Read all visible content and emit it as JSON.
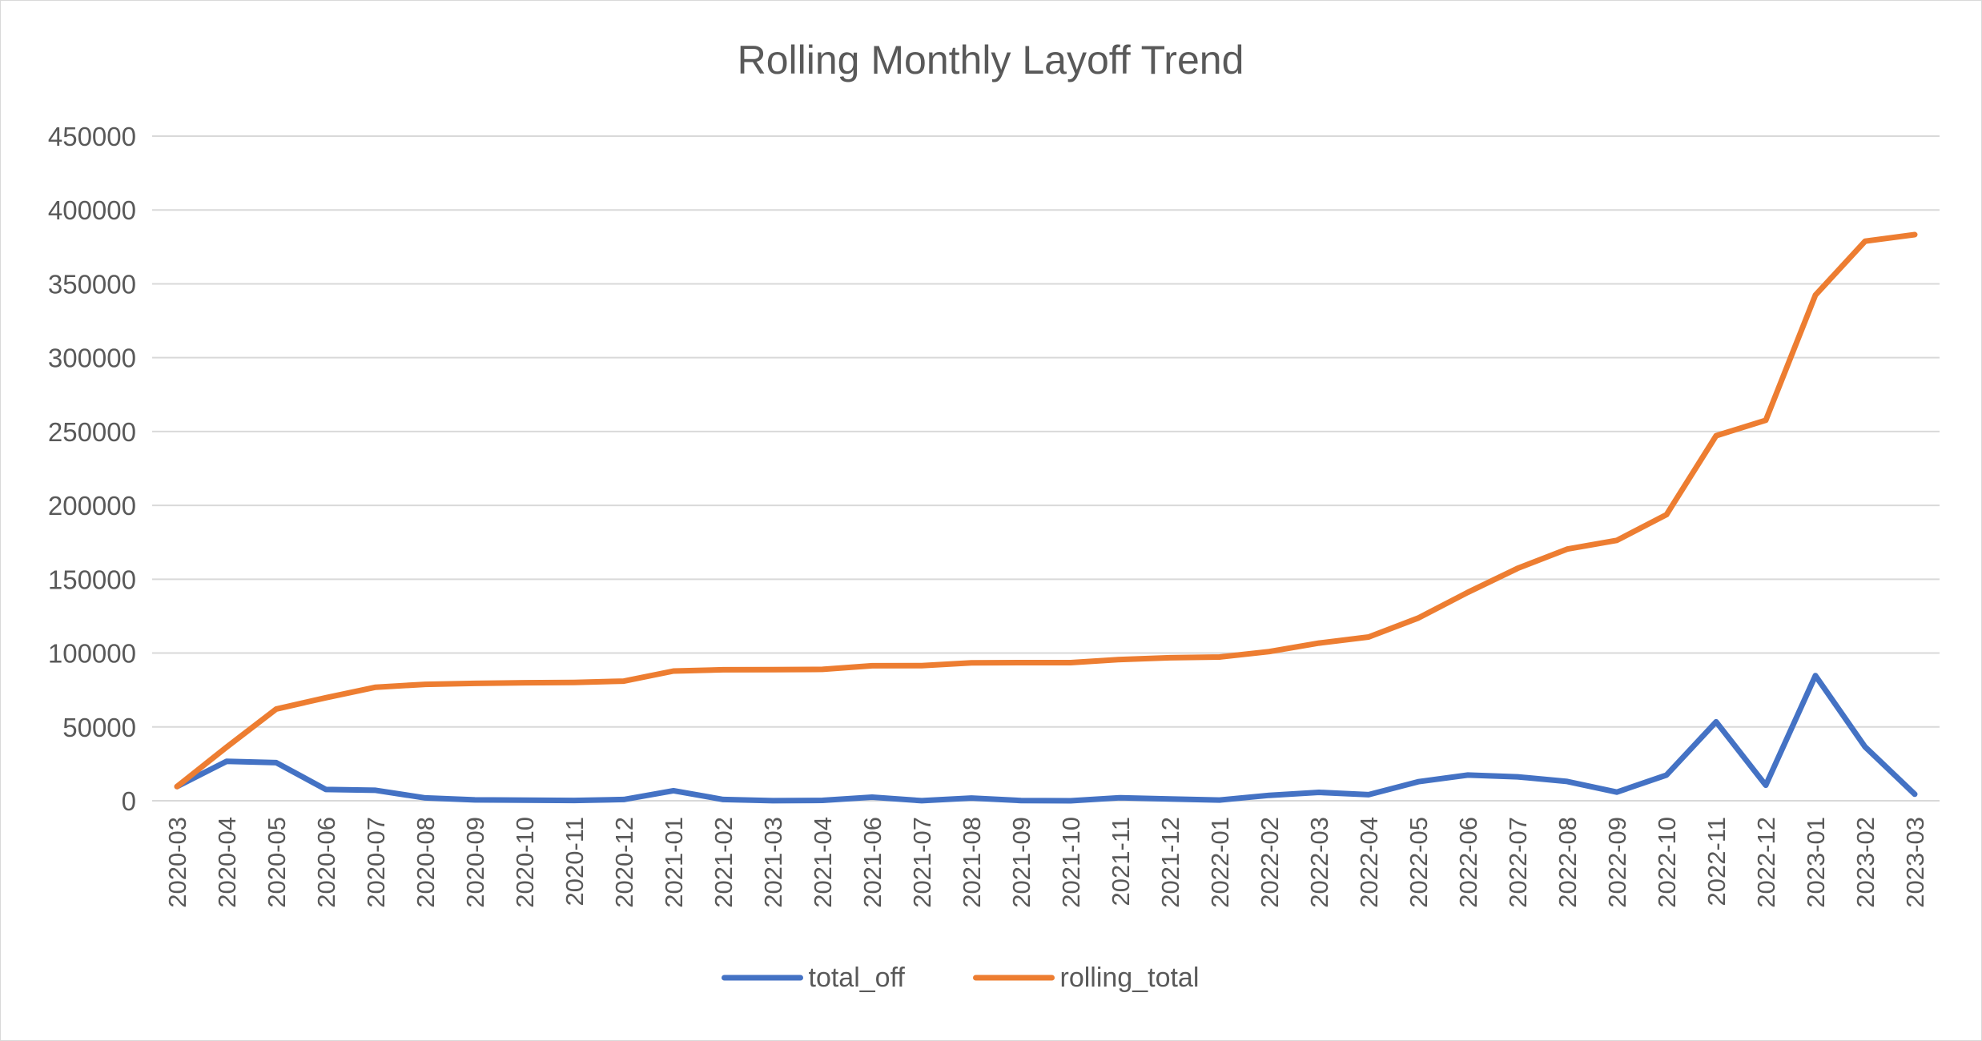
{
  "chart_data": {
    "type": "line",
    "title": "Rolling Monthly Layoff Trend",
    "xlabel": "",
    "ylabel": "",
    "ylim": [
      0,
      450000
    ],
    "yticks": [
      "0",
      "50000",
      "100000",
      "150000",
      "200000",
      "250000",
      "300000",
      "350000",
      "400000",
      "450000"
    ],
    "grid": true,
    "legend_position": "bottom",
    "categories": [
      "2020-03",
      "2020-04",
      "2020-05",
      "2020-06",
      "2020-07",
      "2020-08",
      "2020-09",
      "2020-10",
      "2020-11",
      "2020-12",
      "2021-01",
      "2021-02",
      "2021-03",
      "2021-04",
      "2021-06",
      "2021-07",
      "2021-08",
      "2021-09",
      "2021-10",
      "2021-11",
      "2021-12",
      "2022-01",
      "2022-02",
      "2022-03",
      "2022-04",
      "2022-05",
      "2022-06",
      "2022-07",
      "2022-08",
      "2022-09",
      "2022-10",
      "2022-11",
      "2022-12",
      "2023-01",
      "2023-02",
      "2023-03"
    ],
    "series": [
      {
        "name": "total_off",
        "color": "#4472c4",
        "values": [
          9628,
          26710,
          25804,
          7627,
          7112,
          1969,
          609,
          450,
          237,
          852,
          6813,
          868,
          47,
          261,
          2434,
          80,
          1867,
          161,
          22,
          2070,
          1200,
          510,
          3685,
          5714,
          4128,
          12885,
          17394,
          16223,
          13055,
          5881,
          17406,
          53451,
          10491,
          84714,
          36493,
          4470
        ]
      },
      {
        "name": "rolling_total",
        "color": "#ed7d31",
        "values": [
          9628,
          36338,
          62142,
          69769,
          76881,
          78850,
          79459,
          79909,
          80146,
          80998,
          87811,
          88679,
          88726,
          88987,
          91421,
          91501,
          93368,
          93529,
          93551,
          95621,
          96821,
          97331,
          101016,
          106730,
          110858,
          123743,
          141137,
          157360,
          170415,
          176296,
          193702,
          247153,
          257644,
          342358,
          378851,
          383321
        ]
      }
    ]
  }
}
